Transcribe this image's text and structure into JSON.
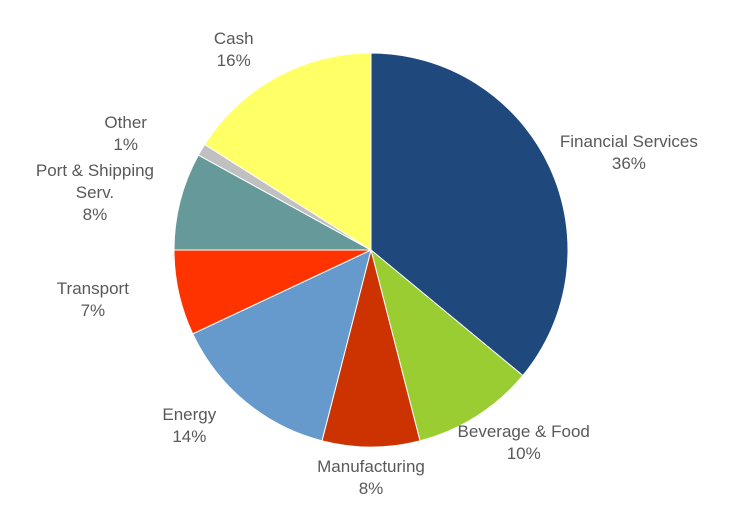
{
  "chart_data": {
    "type": "pie",
    "categories": [
      "Financial Services",
      "Beverage & Food",
      "Manufacturing",
      "Energy",
      "Transport",
      "Port & Shipping Serv.",
      "Other",
      "Cash"
    ],
    "values": [
      36,
      10,
      8,
      14,
      7,
      8,
      1,
      16
    ],
    "value_labels": [
      "36%",
      "10%",
      "8%",
      "14%",
      "7%",
      "8%",
      "1%",
      "16%"
    ],
    "colors": [
      "#1f497d",
      "#9acd32",
      "#cc3300",
      "#6699cc",
      "#ff3300",
      "#669999",
      "#c0c0c0",
      "#ffff66"
    ]
  }
}
